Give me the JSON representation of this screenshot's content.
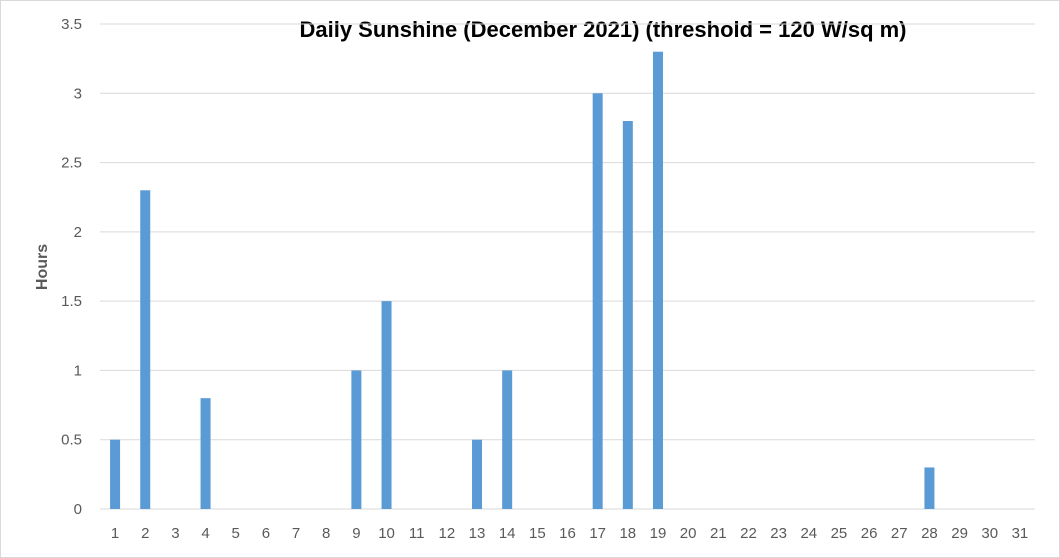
{
  "chart_data": {
    "type": "bar",
    "title": "Daily Sunshine (December 2021) (threshold = 120 W/sq m)",
    "xlabel": "",
    "ylabel": "Hours",
    "categories": [
      "1",
      "2",
      "3",
      "4",
      "5",
      "6",
      "7",
      "8",
      "9",
      "10",
      "11",
      "12",
      "13",
      "14",
      "15",
      "16",
      "17",
      "18",
      "19",
      "20",
      "21",
      "22",
      "23",
      "24",
      "25",
      "26",
      "27",
      "28",
      "29",
      "30",
      "31"
    ],
    "values": [
      0.5,
      2.3,
      0,
      0.8,
      0,
      0,
      0,
      0,
      1,
      1.5,
      0,
      0,
      0.5,
      1,
      0,
      0,
      3,
      2.8,
      3.3,
      0,
      0,
      0,
      0,
      0,
      0,
      0,
      0,
      0.3,
      0,
      0,
      0
    ],
    "ylim": [
      0,
      3.5
    ],
    "yticks": [
      "0",
      "0.5",
      "1",
      "1.5",
      "2",
      "2.5",
      "3",
      "3.5"
    ],
    "grid": true,
    "legend": "none",
    "bar_color": "#5b9bd5",
    "grid_color": "#d9d9d9"
  }
}
